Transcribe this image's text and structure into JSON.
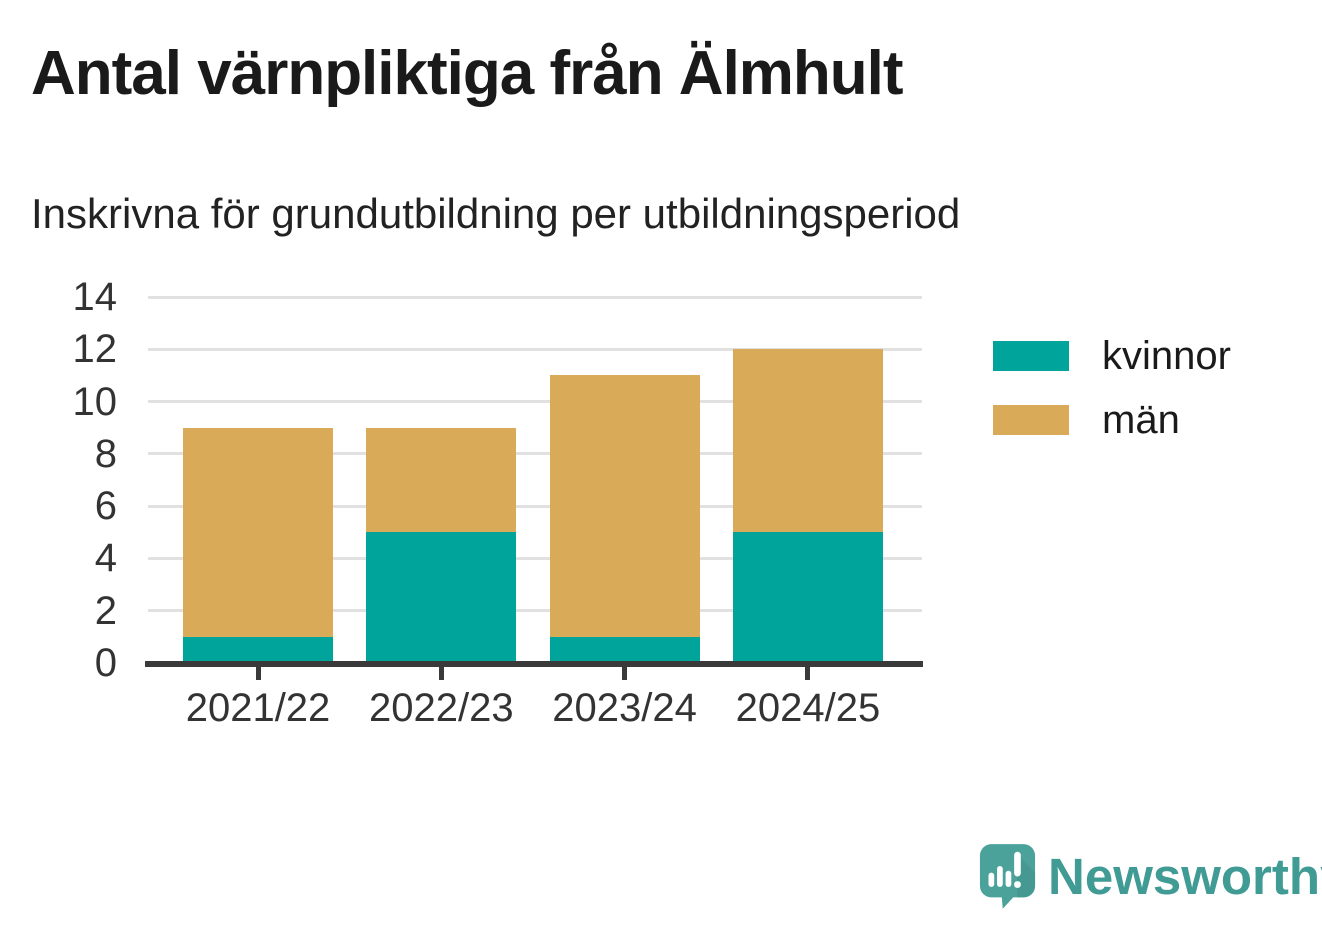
{
  "title": "Antal värnpliktiga från Älmhult",
  "subtitle": "Inskrivna för grundutbildning per utbildningsperiod",
  "chart_data": {
    "type": "bar",
    "stacked": true,
    "categories": [
      "2021/22",
      "2022/23",
      "2023/24",
      "2024/25"
    ],
    "series": [
      {
        "name": "kvinnor",
        "color": "#00a49a",
        "values": [
          1,
          5,
          1,
          5
        ]
      },
      {
        "name": "män",
        "color": "#d9ab58",
        "values": [
          8,
          4,
          10,
          7
        ]
      }
    ],
    "totals": [
      9,
      9,
      11,
      12
    ],
    "title": "Antal värnpliktiga från Älmhult",
    "subtitle": "Inskrivna för grundutbildning per utbildningsperiod",
    "xlabel": "",
    "ylabel": "",
    "ylim": [
      0,
      14
    ],
    "yticks": [
      0,
      2,
      4,
      6,
      8,
      10,
      12,
      14
    ],
    "grid": true,
    "gridline_color": "#e1e1e1",
    "axis_line_color": "#3a3a3a",
    "tick_label_color": "#333333",
    "legend_position": "right"
  },
  "legend": {
    "items": [
      {
        "label": "kvinnor",
        "color": "#00a49a"
      },
      {
        "label": "män",
        "color": "#d9ab58"
      }
    ]
  },
  "branding": {
    "logo_text": "Newsworthy",
    "logo_icon": "newsworthy-speech-bubble-chart-icon",
    "logo_color": "#3f9b94",
    "icon_fill": "#4ba29b"
  }
}
